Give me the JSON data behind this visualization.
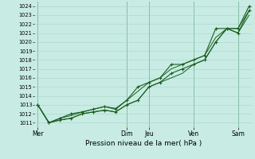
{
  "xlabel": "Pression niveau de la mer( hPa )",
  "bg_color": "#c8ece4",
  "grid_color": "#a8d4c8",
  "line_color": "#1a5e20",
  "vline_color": "#4a8e60",
  "ylim_min": 1010.5,
  "ylim_max": 1024.5,
  "yticks": [
    1011,
    1012,
    1013,
    1014,
    1015,
    1016,
    1017,
    1018,
    1019,
    1020,
    1021,
    1022,
    1023,
    1024
  ],
  "day_labels": [
    "Mer",
    "Dim",
    "Jeu",
    "Ven",
    "Sam"
  ],
  "day_x": [
    0,
    8,
    10,
    14,
    18
  ],
  "x_min": -0.3,
  "x_max": 19.3,
  "line1_x": [
    0,
    1,
    2,
    3,
    4,
    5,
    6,
    7,
    8,
    9,
    10,
    11,
    12,
    13,
    14,
    15,
    16,
    17,
    18,
    19
  ],
  "line1_y": [
    1013.0,
    1011.0,
    1011.3,
    1011.5,
    1012.0,
    1012.2,
    1012.4,
    1012.2,
    1013.0,
    1013.5,
    1015.0,
    1015.5,
    1016.0,
    1016.5,
    1017.5,
    1018.0,
    1020.0,
    1021.5,
    1021.0,
    1023.0
  ],
  "line2_x": [
    0,
    1,
    2,
    3,
    4,
    5,
    6,
    7,
    8,
    9,
    10,
    11,
    12,
    13,
    14,
    15,
    16,
    17,
    18,
    19
  ],
  "line2_y": [
    1013.0,
    1011.0,
    1011.5,
    1011.8,
    1012.2,
    1012.5,
    1012.8,
    1012.6,
    1013.5,
    1014.5,
    1015.5,
    1016.0,
    1017.0,
    1017.5,
    1018.0,
    1018.5,
    1020.5,
    1021.5,
    1021.5,
    1023.5
  ],
  "line3_x": [
    0,
    1,
    2,
    3,
    4,
    5,
    6,
    7,
    8,
    9,
    10,
    11,
    12,
    13,
    14,
    15,
    16,
    17,
    18,
    19
  ],
  "line3_y": [
    1013.0,
    1011.0,
    1011.5,
    1012.0,
    1012.2,
    1012.5,
    1012.8,
    1012.5,
    1013.5,
    1015.0,
    1015.5,
    1016.0,
    1017.5,
    1017.5,
    1018.0,
    1018.5,
    1021.5,
    1021.5,
    1021.5,
    1024.0
  ],
  "line4_x": [
    0,
    1,
    2,
    3,
    4,
    5,
    6,
    7,
    8,
    9,
    10,
    11,
    12,
    13,
    14,
    15,
    16,
    17,
    18,
    19
  ],
  "line4_y": [
    1013.0,
    1011.0,
    1011.3,
    1011.5,
    1012.0,
    1012.2,
    1012.4,
    1012.2,
    1013.0,
    1013.5,
    1015.0,
    1015.5,
    1016.5,
    1017.0,
    1017.5,
    1018.0,
    1020.0,
    1021.5,
    1021.0,
    1023.5
  ],
  "ylabel_fontsize": 4.5,
  "xlabel_fontsize": 6.5,
  "xtick_fontsize": 5.5,
  "ytick_fontsize": 4.8
}
